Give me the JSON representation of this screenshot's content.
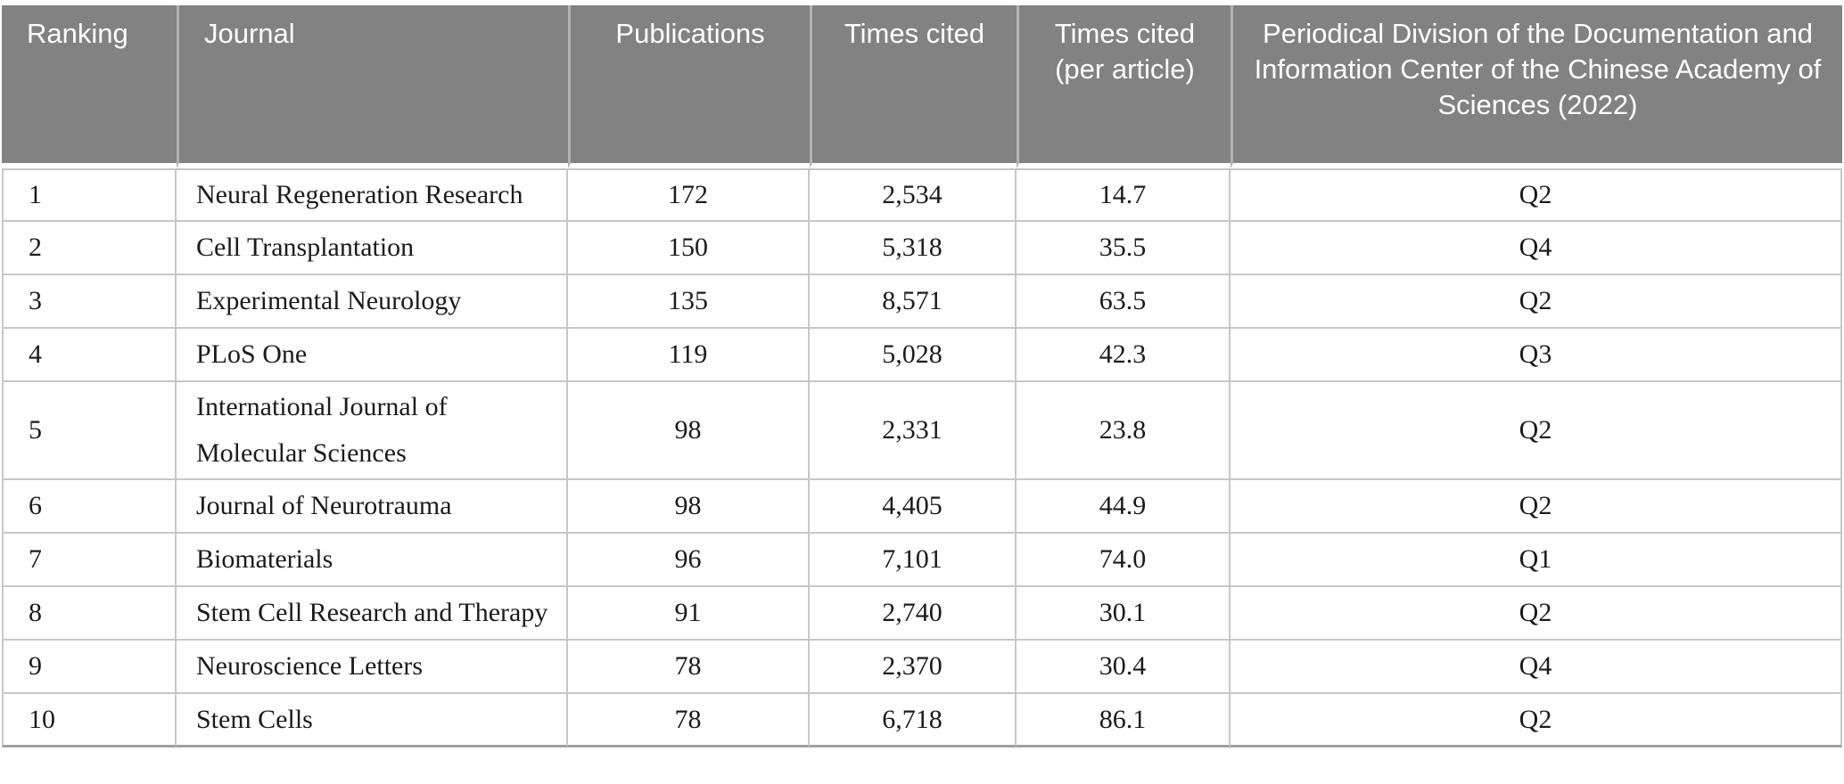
{
  "table": {
    "columns": [
      {
        "label": "Ranking",
        "align": "left"
      },
      {
        "label": "Journal",
        "align": "left"
      },
      {
        "label": "Publications",
        "align": "center"
      },
      {
        "label": "Times cited",
        "align": "center"
      },
      {
        "label": "Times cited (per article)",
        "align": "center"
      },
      {
        "label": "Periodical Division of the Documentation and Information Center of the Chinese Academy of Sciences (2022)",
        "align": "center"
      }
    ],
    "rows": [
      [
        "1",
        "Neural Regeneration Research",
        "172",
        "2,534",
        "14.7",
        "Q2"
      ],
      [
        "2",
        "Cell Transplantation",
        "150",
        "5,318",
        "35.5",
        "Q4"
      ],
      [
        "3",
        "Experimental Neurology",
        "135",
        "8,571",
        "63.5",
        "Q2"
      ],
      [
        "4",
        "PLoS One",
        "119",
        "5,028",
        "42.3",
        "Q3"
      ],
      [
        "5",
        "International Journal of Molecular Sciences",
        "98",
        "2,331",
        "23.8",
        "Q2"
      ],
      [
        "6",
        "Journal of Neurotrauma",
        "98",
        "4,405",
        "44.9",
        "Q2"
      ],
      [
        "7",
        "Biomaterials",
        "96",
        "7,101",
        "74.0",
        "Q1"
      ],
      [
        "8",
        "Stem Cell Research and Therapy",
        "91",
        "2,740",
        "30.1",
        "Q2"
      ],
      [
        "9",
        "Neuroscience Letters",
        "78",
        "2,370",
        "30.4",
        "Q4"
      ],
      [
        "10",
        "Stem Cells",
        "78",
        "6,718",
        "86.1",
        "Q2"
      ]
    ]
  },
  "colors": {
    "header_bg": "#828282",
    "header_text": "#ffffff",
    "body_text": "#1b1b1b",
    "row_border": "#c7c7c7"
  }
}
